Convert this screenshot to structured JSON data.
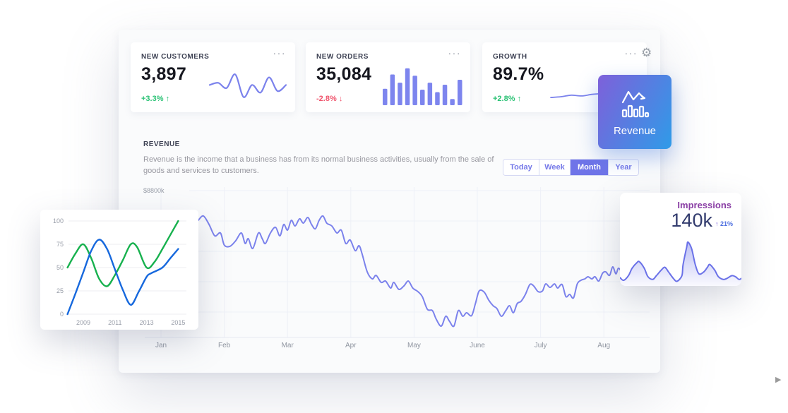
{
  "ui": {
    "menu_dots": "···",
    "play_icon": "▶",
    "gear_icon": "⚙"
  },
  "stats": [
    {
      "label": "NEW CUSTOMERS",
      "value": "3,897",
      "delta": "+3.3%",
      "arrow": "↑",
      "direction": "up"
    },
    {
      "label": "NEW ORDERS",
      "value": "35,084",
      "delta": "-2.8%",
      "arrow": "↓",
      "direction": "down"
    },
    {
      "label": "GROWTH",
      "value": "89.7%",
      "delta": "+2.8%",
      "arrow": "↑",
      "direction": "up"
    }
  ],
  "revenue_card": {
    "label": "Revenue",
    "icon": "line-and-bars-chart",
    "gradient": [
      "#7e60da",
      "#2f9be8"
    ]
  },
  "revenue_section": {
    "title": "REVENUE",
    "description": "Revenue is the income that a business has from its normal business activities, usually from the sale of goods and services to customers.",
    "range_buttons": [
      {
        "label": "Today",
        "selected": false
      },
      {
        "label": "Week",
        "selected": false
      },
      {
        "label": "Month",
        "selected": true
      },
      {
        "label": "Year",
        "selected": false
      }
    ]
  },
  "impressions_card": {
    "title": "Impressions",
    "value": "140k",
    "arrow": "↑",
    "delta": "21%"
  },
  "colors": {
    "accent_purple": "#7b82ec",
    "green": "#2bc275",
    "red": "#f0566e",
    "toggle_selected": "#6f74e8",
    "impressions_title": "#8a3fa5",
    "impressions_value": "#333c6e"
  },
  "chart_data": [
    {
      "id": "customers-spark",
      "type": "line",
      "title": "New customers sparkline",
      "color": "#7b82ec",
      "values": [
        55,
        62,
        45,
        90,
        15,
        55,
        30,
        80,
        35,
        55
      ]
    },
    {
      "id": "orders-bars",
      "type": "bar",
      "title": "New orders bars",
      "color": "#7d85ee",
      "values": [
        40,
        75,
        55,
        90,
        72,
        38,
        55,
        32,
        50,
        15,
        62
      ]
    },
    {
      "id": "growth-spark",
      "type": "line",
      "title": "Growth sparkline",
      "color": "#7b82ec",
      "values": [
        18,
        20,
        24,
        22,
        26,
        28,
        27,
        30,
        36,
        50
      ]
    },
    {
      "id": "revenue-main",
      "type": "line",
      "title": "REVENUE",
      "color": "#7b82ec",
      "x_categories": [
        "Jan",
        "Feb",
        "Mar",
        "Apr",
        "May",
        "June",
        "July",
        "Aug"
      ],
      "y_top_label": "$8800k",
      "y_unit": "$k",
      "ylim": [
        0,
        8800
      ],
      "grid": true,
      "legend": false,
      "points": [
        [
          0.59,
          7020
        ],
        [
          0.67,
          7280
        ],
        [
          0.76,
          6770
        ],
        [
          0.85,
          6090
        ],
        [
          0.94,
          6260
        ],
        [
          1.0,
          5540
        ],
        [
          1.09,
          5460
        ],
        [
          1.18,
          5790
        ],
        [
          1.27,
          6260
        ],
        [
          1.33,
          5630
        ],
        [
          1.38,
          5920
        ],
        [
          1.45,
          5330
        ],
        [
          1.54,
          6260
        ],
        [
          1.6,
          5920
        ],
        [
          1.65,
          5630
        ],
        [
          1.73,
          6260
        ],
        [
          1.81,
          6600
        ],
        [
          1.88,
          6090
        ],
        [
          1.94,
          6770
        ],
        [
          2.0,
          6430
        ],
        [
          2.06,
          7020
        ],
        [
          2.12,
          6680
        ],
        [
          2.19,
          7110
        ],
        [
          2.25,
          6850
        ],
        [
          2.32,
          7190
        ],
        [
          2.38,
          6770
        ],
        [
          2.44,
          6510
        ],
        [
          2.5,
          7020
        ],
        [
          2.56,
          7280
        ],
        [
          2.62,
          6850
        ],
        [
          2.7,
          6680
        ],
        [
          2.78,
          6260
        ],
        [
          2.85,
          6430
        ],
        [
          2.92,
          5630
        ],
        [
          2.99,
          5840
        ],
        [
          3.07,
          5200
        ],
        [
          3.13,
          5500
        ],
        [
          3.18,
          4990
        ],
        [
          3.26,
          3930
        ],
        [
          3.34,
          3510
        ],
        [
          3.4,
          3720
        ],
        [
          3.48,
          3300
        ],
        [
          3.55,
          3380
        ],
        [
          3.63,
          2960
        ],
        [
          3.68,
          3300
        ],
        [
          3.76,
          2880
        ],
        [
          3.84,
          3090
        ],
        [
          3.91,
          3380
        ],
        [
          3.98,
          2960
        ],
        [
          4.06,
          2750
        ],
        [
          4.13,
          2450
        ],
        [
          4.21,
          1690
        ],
        [
          4.29,
          1610
        ],
        [
          4.35,
          1100
        ],
        [
          4.43,
          680
        ],
        [
          4.5,
          1270
        ],
        [
          4.56,
          970
        ],
        [
          4.63,
          680
        ],
        [
          4.7,
          1610
        ],
        [
          4.77,
          1270
        ],
        [
          4.83,
          1480
        ],
        [
          4.91,
          1310
        ],
        [
          4.97,
          2030
        ],
        [
          5.03,
          2790
        ],
        [
          5.11,
          2710
        ],
        [
          5.18,
          2240
        ],
        [
          5.25,
          1900
        ],
        [
          5.31,
          1730
        ],
        [
          5.38,
          1270
        ],
        [
          5.45,
          1610
        ],
        [
          5.51,
          1900
        ],
        [
          5.57,
          1480
        ],
        [
          5.63,
          2030
        ],
        [
          5.69,
          2160
        ],
        [
          5.76,
          2580
        ],
        [
          5.83,
          3170
        ],
        [
          5.89,
          3090
        ],
        [
          5.96,
          2750
        ],
        [
          6.03,
          2790
        ],
        [
          6.08,
          3210
        ],
        [
          6.15,
          3000
        ],
        [
          6.22,
          3210
        ],
        [
          6.27,
          2960
        ],
        [
          6.34,
          3170
        ],
        [
          6.4,
          2450
        ],
        [
          6.46,
          2580
        ],
        [
          6.52,
          2370
        ],
        [
          6.58,
          3210
        ],
        [
          6.64,
          3430
        ],
        [
          6.7,
          3510
        ],
        [
          6.75,
          3640
        ],
        [
          6.81,
          3510
        ],
        [
          6.86,
          3640
        ],
        [
          6.92,
          3380
        ],
        [
          6.98,
          3850
        ],
        [
          7.03,
          3930
        ],
        [
          7.09,
          3720
        ],
        [
          7.14,
          4230
        ],
        [
          7.19,
          3810
        ],
        [
          7.23,
          4150
        ],
        [
          7.28,
          3930
        ]
      ]
    },
    {
      "id": "years-mini",
      "type": "line",
      "title": "Years comparison",
      "x_ticks": [
        2009,
        2011,
        2013,
        2015
      ],
      "y_ticks": [
        0,
        25,
        50,
        75,
        100
      ],
      "grid": true,
      "series": [
        {
          "name": "green",
          "color": "#17b14e",
          "points": [
            [
              2008,
              50
            ],
            [
              2008.5,
              65
            ],
            [
              2009,
              75
            ],
            [
              2009.5,
              60
            ],
            [
              2010,
              38
            ],
            [
              2010.5,
              30
            ],
            [
              2011,
              42
            ],
            [
              2011.5,
              58
            ],
            [
              2012,
              75
            ],
            [
              2012.4,
              72
            ],
            [
              2013,
              50
            ],
            [
              2013.5,
              56
            ],
            [
              2014,
              70
            ],
            [
              2014.5,
              85
            ],
            [
              2015,
              100
            ]
          ]
        },
        {
          "name": "blue",
          "color": "#1668dd",
          "points": [
            [
              2008,
              0
            ],
            [
              2008.5,
              22
            ],
            [
              2009,
              45
            ],
            [
              2009.5,
              68
            ],
            [
              2010,
              80
            ],
            [
              2010.5,
              70
            ],
            [
              2011,
              48
            ],
            [
              2011.5,
              26
            ],
            [
              2012,
              10
            ],
            [
              2012.5,
              24
            ],
            [
              2013,
              40
            ],
            [
              2013.3,
              44
            ],
            [
              2014,
              50
            ],
            [
              2014.5,
              60
            ],
            [
              2015,
              70
            ]
          ]
        }
      ]
    },
    {
      "id": "impressions-area",
      "type": "area",
      "title": "Impressions trend",
      "color": "#6a71e8",
      "points": [
        [
          0,
          91
        ],
        [
          3,
          94
        ],
        [
          7,
          89
        ],
        [
          10,
          81
        ],
        [
          14,
          75
        ],
        [
          16,
          74
        ],
        [
          20,
          81
        ],
        [
          23,
          90
        ],
        [
          27,
          93
        ],
        [
          30,
          89
        ],
        [
          34,
          83
        ],
        [
          37,
          80
        ],
        [
          40,
          85
        ],
        [
          44,
          92
        ],
        [
          47,
          95
        ],
        [
          51,
          89
        ],
        [
          52,
          77
        ],
        [
          55,
          58
        ],
        [
          56,
          53
        ],
        [
          59,
          60
        ],
        [
          62,
          77
        ],
        [
          65,
          87
        ],
        [
          69,
          85
        ],
        [
          72,
          80
        ],
        [
          74,
          77
        ],
        [
          78,
          83
        ],
        [
          81,
          90
        ],
        [
          85,
          93
        ],
        [
          88,
          92
        ],
        [
          92,
          89
        ],
        [
          95,
          90
        ],
        [
          98,
          93
        ],
        [
          100,
          92
        ]
      ]
    }
  ]
}
